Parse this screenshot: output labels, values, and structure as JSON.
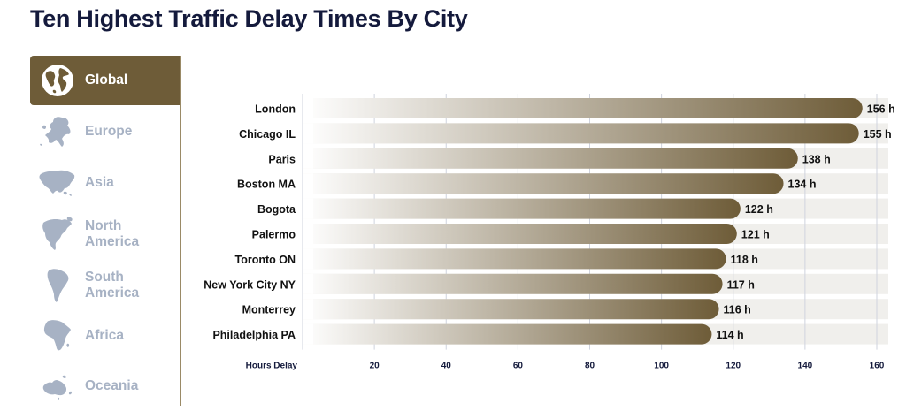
{
  "colors": {
    "accent": "#6e5c38",
    "bar_end": "#6e5c38",
    "bar_start": "#ffffff",
    "bar_track": "#f0efec",
    "grid": "#cfd3de",
    "title": "#141a3c",
    "inactive_label": "#a7b2c4"
  },
  "sidebar": {
    "items": [
      {
        "label": "Global",
        "icon": "globe-icon",
        "active": true
      },
      {
        "label": "Europe",
        "icon": "europe-map-icon",
        "active": false
      },
      {
        "label": "Asia",
        "icon": "asia-map-icon",
        "active": false
      },
      {
        "label": "North\nAmerica",
        "icon": "north-america-map-icon",
        "active": false
      },
      {
        "label": "South\nAmerica",
        "icon": "south-america-map-icon",
        "active": false
      },
      {
        "label": "Africa",
        "icon": "africa-map-icon",
        "active": false
      },
      {
        "label": "Oceania",
        "icon": "oceania-map-icon",
        "active": false
      }
    ]
  },
  "chart_data": {
    "type": "bar",
    "orientation": "horizontal",
    "title": "Ten Highest Traffic Delay Times By City",
    "xlabel": "Hours Delay",
    "ylabel": "",
    "value_suffix": " h",
    "xlim": [
      0,
      160
    ],
    "xticks": [
      20,
      40,
      60,
      80,
      100,
      120,
      140,
      160
    ],
    "grid": true,
    "categories": [
      "London",
      "Chicago IL",
      "Paris",
      "Boston MA",
      "Bogota",
      "Palermo",
      "Toronto ON",
      "New York City NY",
      "Monterrey",
      "Philadelphia PA"
    ],
    "values": [
      156,
      155,
      138,
      134,
      122,
      121,
      118,
      117,
      116,
      114
    ]
  }
}
